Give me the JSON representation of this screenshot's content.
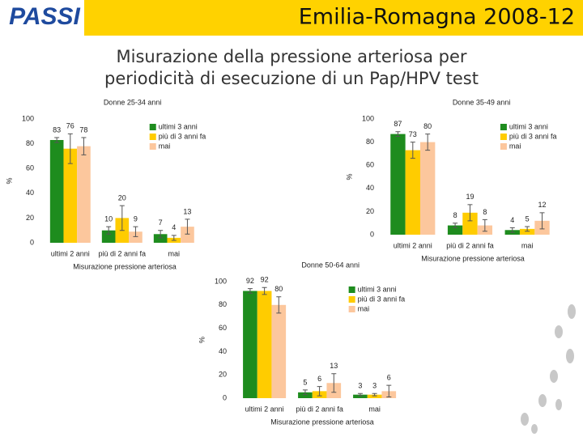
{
  "header": {
    "logo": "PASSI",
    "title": "Emilia-Romagna 2008-12",
    "subtitle_lines": [
      "Misurazione della pressione arteriosa per",
      "periodicità di esecuzione di un Pap/HPV test"
    ]
  },
  "chart_data": [
    {
      "type": "bar",
      "title": "Donne 25-34 anni",
      "xlabel": "Misurazione pressione arteriosa",
      "ylabel": "%",
      "categories": [
        "ultimi 2 anni",
        "più di 2 anni fa",
        "mai"
      ],
      "series": [
        {
          "name": "ultimi 3 anni",
          "color": "#1e8c1e",
          "values": [
            83,
            10,
            7
          ],
          "errors": [
            2,
            3,
            3
          ]
        },
        {
          "name": "più di 3 anni fa",
          "color": "#ffcc00",
          "values": [
            76,
            20,
            4
          ],
          "errors": [
            12,
            10,
            2
          ]
        },
        {
          "name": "mai",
          "color": "#fcc79d",
          "values": [
            78,
            9,
            13
          ],
          "errors": [
            7,
            4,
            6
          ]
        }
      ],
      "ylim": [
        0,
        100
      ],
      "yticks": [
        0,
        20,
        40,
        60,
        80,
        100
      ]
    },
    {
      "type": "bar",
      "title": "Donne 35-49 anni",
      "xlabel": "Misurazione pressione arteriosa",
      "ylabel": "%",
      "categories": [
        "ultimi 2 anni",
        "più di 2 anni fa",
        "mai"
      ],
      "series": [
        {
          "name": "ultimi 3 anni",
          "color": "#1e8c1e",
          "values": [
            87,
            8,
            4
          ],
          "errors": [
            2,
            2,
            2
          ]
        },
        {
          "name": "più di 3 anni fa",
          "color": "#ffcc00",
          "values": [
            73,
            19,
            5
          ],
          "errors": [
            7,
            7,
            2
          ]
        },
        {
          "name": "mai",
          "color": "#fcc79d",
          "values": [
            80,
            8,
            12
          ],
          "errors": [
            7,
            5,
            7
          ]
        }
      ],
      "ylim": [
        0,
        100
      ],
      "yticks": [
        0,
        20,
        40,
        60,
        80,
        100
      ]
    },
    {
      "type": "bar",
      "title": "Donne 50-64 anni",
      "xlabel": "Misurazione pressione arteriosa",
      "ylabel": "%",
      "categories": [
        "ultimi 2 anni",
        "più di 2 anni fa",
        "mai"
      ],
      "series": [
        {
          "name": "ultimi 3 anni",
          "color": "#1e8c1e",
          "values": [
            92,
            5,
            3
          ],
          "errors": [
            2,
            2,
            1
          ]
        },
        {
          "name": "più di 3 anni fa",
          "color": "#ffcc00",
          "values": [
            92,
            6,
            3
          ],
          "errors": [
            3,
            4,
            1
          ]
        },
        {
          "name": "mai",
          "color": "#fcc79d",
          "values": [
            80,
            13,
            6
          ],
          "errors": [
            7,
            8,
            5
          ]
        }
      ],
      "ylim": [
        0,
        100
      ],
      "yticks": [
        0,
        20,
        40,
        60,
        80,
        100
      ]
    }
  ]
}
